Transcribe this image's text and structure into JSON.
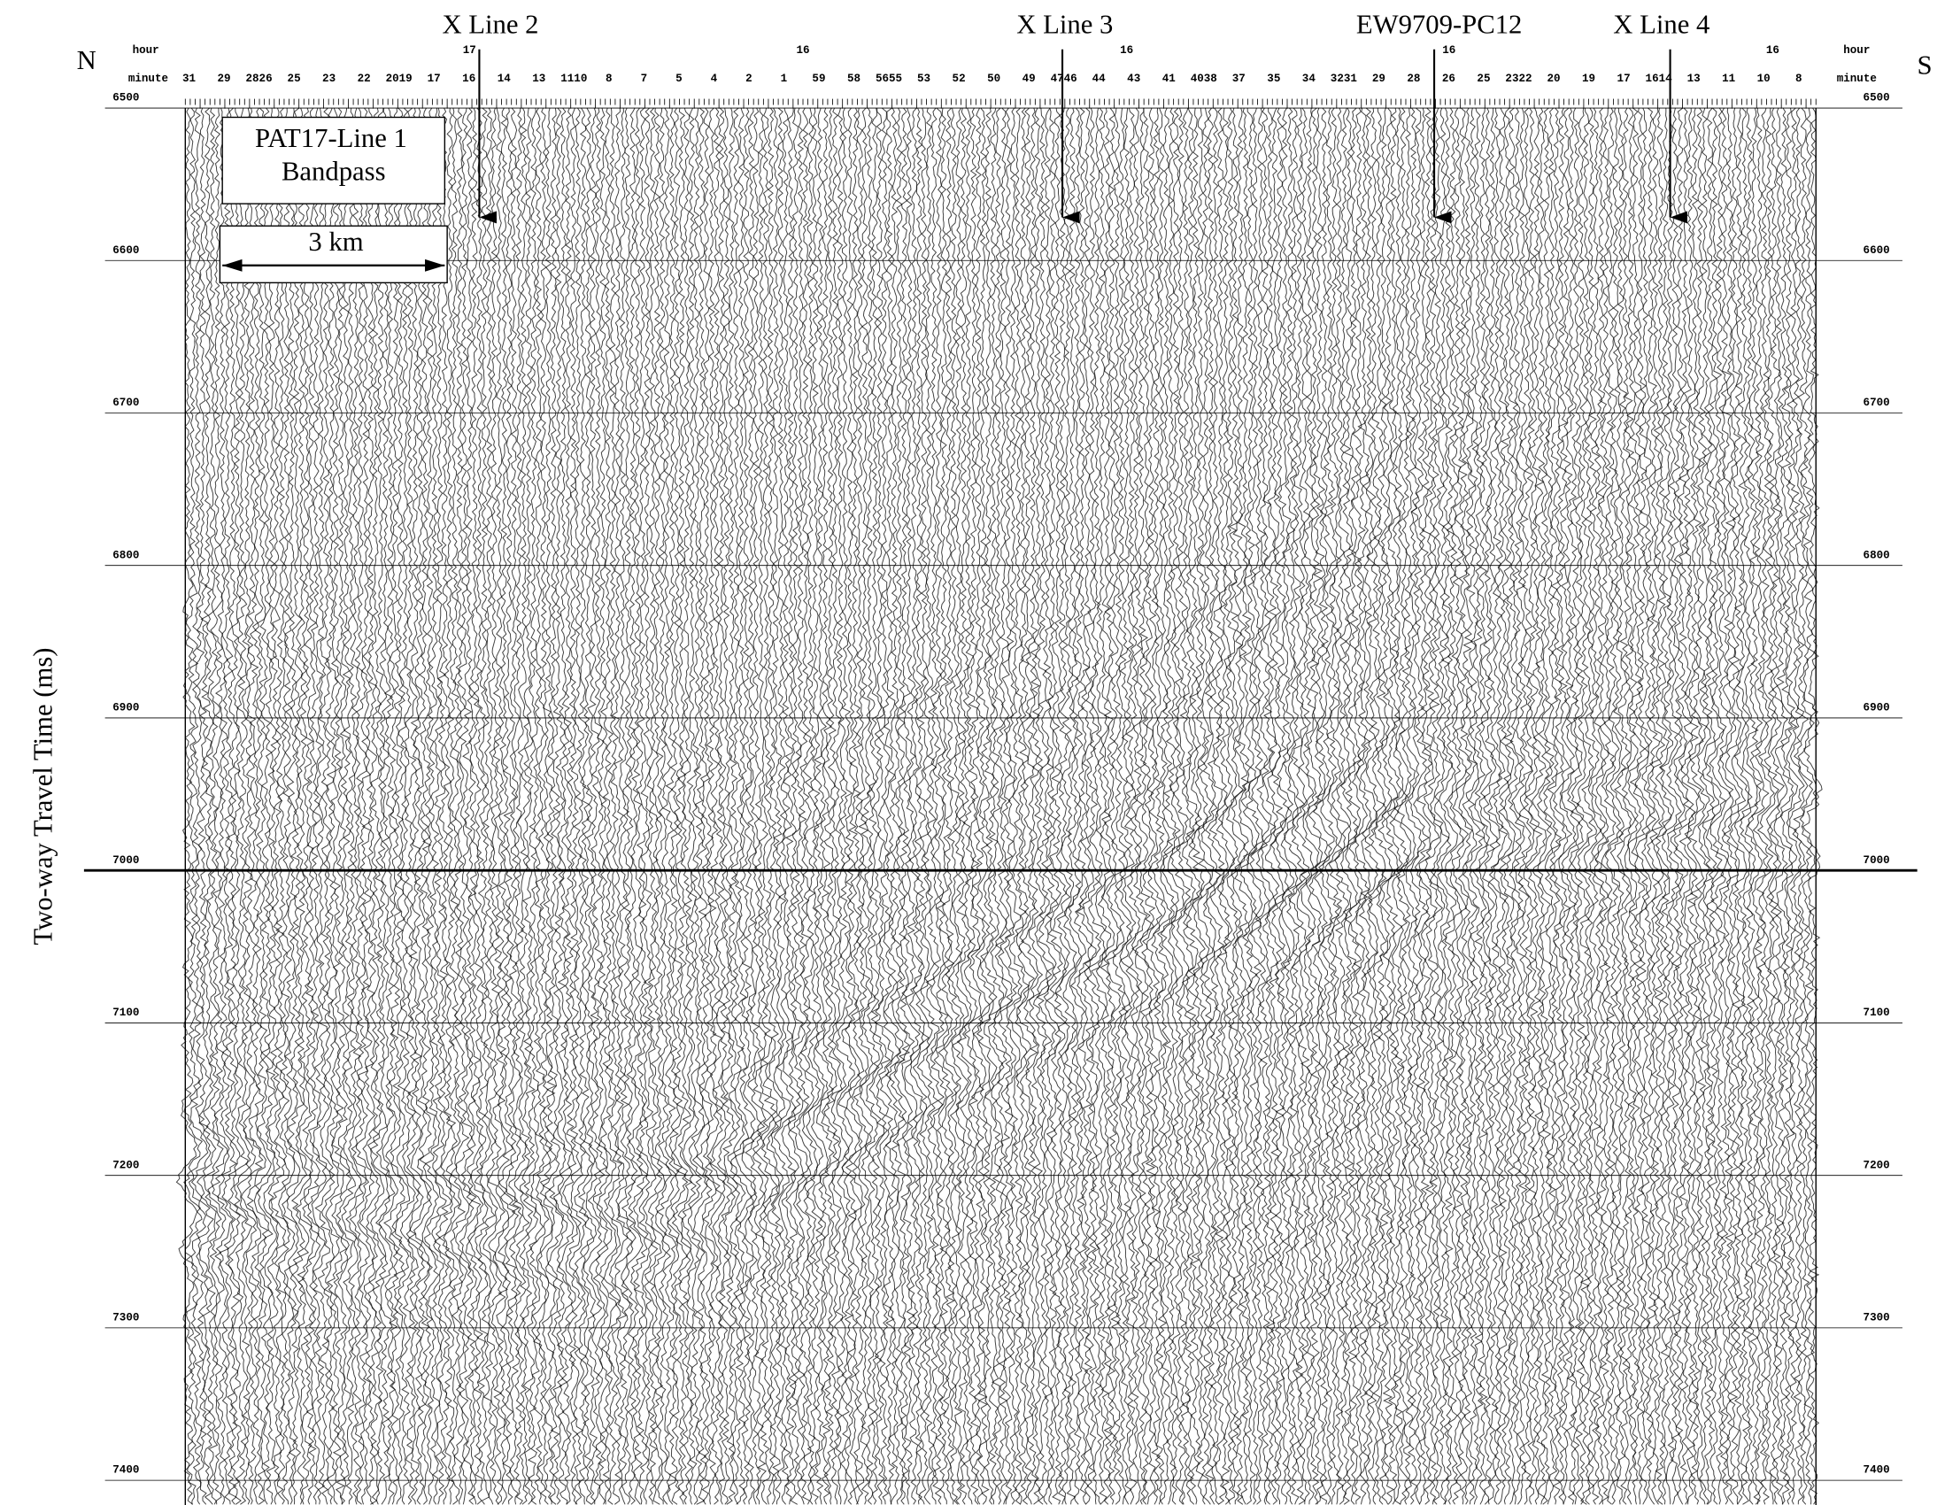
{
  "header": {
    "north": "N",
    "south": "S",
    "hour_label": "hour",
    "minute_label": "minute",
    "hours": [
      "17",
      "16",
      "16",
      "16",
      "16"
    ],
    "minutes": [
      "31",
      "29",
      "2826",
      "25",
      "23",
      "22",
      "2019",
      "17",
      "16",
      "14",
      "13",
      "1110",
      "8",
      "7",
      "5",
      "4",
      "2",
      "1",
      "59",
      "58",
      "5655",
      "53",
      "52",
      "50",
      "49",
      "4746",
      "44",
      "43",
      "41",
      "4038",
      "37",
      "35",
      "34",
      "3231",
      "29",
      "28",
      "26",
      "25",
      "2322",
      "20",
      "19",
      "17",
      "1614",
      "13",
      "11",
      "10",
      "8"
    ]
  },
  "annotations": [
    "X Line 2",
    "X Line 3",
    "EW9709-PC12",
    "X Line 4"
  ],
  "legend": {
    "title": "PAT17-Line 1",
    "subtitle": "Bandpass",
    "scale_bar": "3 km"
  },
  "y_axis": {
    "label": "Two-way Travel Time (ms)",
    "ticks": [
      6500,
      6600,
      6700,
      6800,
      6900,
      7000,
      7100,
      7200,
      7300,
      7400
    ]
  }
}
